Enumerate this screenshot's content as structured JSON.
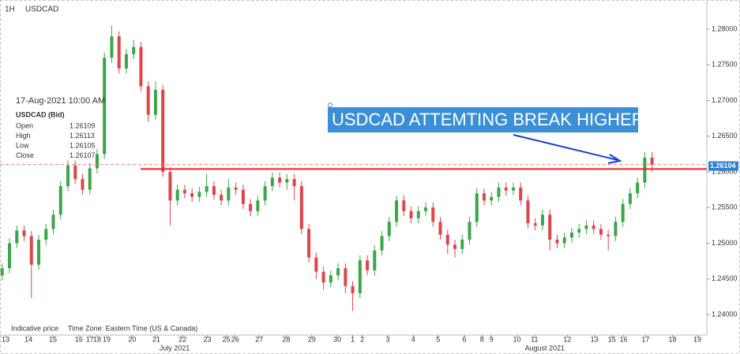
{
  "chart_data": {
    "type": "candlestick",
    "interval": "1H",
    "symbol": "USDCAD",
    "up_color": "#3aa64a",
    "down_color": "#e0444a",
    "ylim": [
      1.23713,
      1.28409
    ],
    "xlim": [
      -0.3,
      96.5
    ],
    "yticks": [
      {
        "value": 1.24,
        "label": "1.24000"
      },
      {
        "value": 1.245,
        "label": "1.24500"
      },
      {
        "value": 1.25,
        "label": "1.25000"
      },
      {
        "value": 1.255,
        "label": "1.25500"
      },
      {
        "value": 1.26,
        "label": "1.26000"
      },
      {
        "value": 1.265,
        "label": "1.26500"
      },
      {
        "value": 1.27,
        "label": "1.27000"
      },
      {
        "value": 1.275,
        "label": "1.27500"
      },
      {
        "value": 1.28,
        "label": "1.28000"
      }
    ],
    "xticks": [
      {
        "value": 0.46,
        "label": "13"
      },
      {
        "value": 3.6,
        "label": "14"
      },
      {
        "value": 6.95,
        "label": "15"
      },
      {
        "value": 10.5,
        "label": "16"
      },
      {
        "value": 12.0,
        "label": "17"
      },
      {
        "value": 13.0,
        "label": "18"
      },
      {
        "value": 14.3,
        "label": "19"
      },
      {
        "value": 17.8,
        "label": "20"
      },
      {
        "value": 21.1,
        "label": "21"
      },
      {
        "value": 24.7,
        "label": "22"
      },
      {
        "value": 28.1,
        "label": "23"
      },
      {
        "value": 30.7,
        "label": "25"
      },
      {
        "value": 31.9,
        "label": "26"
      },
      {
        "value": 35.2,
        "label": "27"
      },
      {
        "value": 38.9,
        "label": "28"
      },
      {
        "value": 42.4,
        "label": "29"
      },
      {
        "value": 45.9,
        "label": "30"
      },
      {
        "value": 48.0,
        "label": "1"
      },
      {
        "value": 49.3,
        "label": "2"
      },
      {
        "value": 52.8,
        "label": "3"
      },
      {
        "value": 56.3,
        "label": "4"
      },
      {
        "value": 59.7,
        "label": "5"
      },
      {
        "value": 63.3,
        "label": "6"
      },
      {
        "value": 65.7,
        "label": "8"
      },
      {
        "value": 67.0,
        "label": "9"
      },
      {
        "value": 70.5,
        "label": "10"
      },
      {
        "value": 72.9,
        "label": "11"
      },
      {
        "value": 77.4,
        "label": "12"
      },
      {
        "value": 81.1,
        "label": "13"
      },
      {
        "value": 83.5,
        "label": "15"
      },
      {
        "value": 85.1,
        "label": "16"
      },
      {
        "value": 88.1,
        "label": "17"
      },
      {
        "value": 91.8,
        "label": "18"
      },
      {
        "value": 95.2,
        "label": "19"
      }
    ],
    "month_labels": [
      {
        "value": 23.6,
        "label": "July 2021"
      },
      {
        "value": 74.3,
        "label": "August 2021"
      }
    ],
    "open": [
      1.2455,
      1.2465,
      1.25,
      1.2518,
      1.251,
      1.247,
      1.2505,
      1.252,
      1.254,
      1.258,
      1.2609,
      1.259,
      1.2575,
      1.2605,
      1.2625,
      1.276,
      1.279,
      1.2745,
      1.2765,
      1.2775,
      1.272,
      1.268,
      1.2715,
      1.26,
      1.256,
      1.2575,
      1.257,
      1.2565,
      1.2572,
      1.258,
      1.2568,
      1.256,
      1.2578,
      1.2575,
      1.2555,
      1.2545,
      1.256,
      1.258,
      1.2592,
      1.2585,
      1.259,
      1.258,
      1.252,
      1.248,
      1.246,
      1.2445,
      1.2455,
      1.2465,
      1.244,
      1.243,
      1.2476,
      1.2462,
      1.249,
      1.251,
      1.253,
      1.256,
      1.2545,
      1.2535,
      1.2545,
      1.255,
      1.253,
      1.2512,
      1.2498,
      1.2492,
      1.2505,
      1.253,
      1.257,
      1.256,
      1.2565,
      1.2578,
      1.2574,
      1.2578,
      1.256,
      1.2528,
      1.2525,
      1.254,
      1.2505,
      1.25,
      1.2508,
      1.2515,
      1.252,
      1.2525,
      1.252,
      1.2512,
      1.251,
      1.253,
      1.2555,
      1.257,
      1.2585,
      1.262
    ],
    "high": [
      1.2472,
      1.2507,
      1.2525,
      1.2525,
      1.2517,
      1.2512,
      1.2527,
      1.2547,
      1.2587,
      1.2616,
      1.2616,
      1.2597,
      1.2612,
      1.2632,
      1.2767,
      1.2805,
      1.2797,
      1.2772,
      1.2785,
      1.2782,
      1.2727,
      1.2727,
      1.2722,
      1.2607,
      1.2582,
      1.2582,
      1.2577,
      1.2579,
      1.2597,
      1.2587,
      1.2575,
      1.259,
      1.2585,
      1.2582,
      1.2562,
      1.2567,
      1.2587,
      1.2599,
      1.2599,
      1.2597,
      1.2597,
      1.2587,
      1.2527,
      1.2487,
      1.2467,
      1.2462,
      1.2472,
      1.2472,
      1.2447,
      1.2483,
      1.2483,
      1.2497,
      1.2517,
      1.2537,
      1.2567,
      1.2567,
      1.2552,
      1.2552,
      1.2557,
      1.2557,
      1.2537,
      1.2519,
      1.2505,
      1.2512,
      1.2537,
      1.2577,
      1.2577,
      1.2572,
      1.2585,
      1.2585,
      1.2585,
      1.2585,
      1.2567,
      1.2535,
      1.2547,
      1.2547,
      1.2512,
      1.2515,
      1.2522,
      1.2527,
      1.2532,
      1.2532,
      1.2527,
      1.2519,
      1.2537,
      1.2562,
      1.2577,
      1.2592,
      1.2628,
      1.2628
    ],
    "low": [
      1.2448,
      1.2458,
      1.2493,
      1.2503,
      1.2423,
      1.2463,
      1.2498,
      1.2513,
      1.2533,
      1.2573,
      1.2583,
      1.2568,
      1.2568,
      1.2598,
      1.2618,
      1.2753,
      1.2738,
      1.2738,
      1.2758,
      1.2713,
      1.267,
      1.2673,
      1.2593,
      1.2525,
      1.2553,
      1.2563,
      1.2558,
      1.2558,
      1.2565,
      1.2561,
      1.2553,
      1.2553,
      1.2568,
      1.2548,
      1.2538,
      1.2538,
      1.2553,
      1.2573,
      1.2578,
      1.2575,
      1.256,
      1.2513,
      1.2473,
      1.245,
      1.2435,
      1.2438,
      1.2448,
      1.243,
      1.2405,
      1.2423,
      1.2455,
      1.2455,
      1.2483,
      1.2503,
      1.2523,
      1.2538,
      1.2528,
      1.2528,
      1.2538,
      1.2523,
      1.2505,
      1.2485,
      1.248,
      1.2485,
      1.2498,
      1.2523,
      1.2553,
      1.2553,
      1.2558,
      1.2567,
      1.2567,
      1.2553,
      1.2521,
      1.2518,
      1.2518,
      1.249,
      1.2493,
      1.2493,
      1.2501,
      1.2508,
      1.2513,
      1.2513,
      1.2505,
      1.249,
      1.2503,
      1.2523,
      1.2548,
      1.2563,
      1.2578,
      1.26
    ],
    "close": [
      1.2465,
      1.25,
      1.2518,
      1.251,
      1.247,
      1.2505,
      1.252,
      1.254,
      1.258,
      1.2609,
      1.259,
      1.2575,
      1.2605,
      1.2625,
      1.276,
      1.279,
      1.2745,
      1.2765,
      1.2775,
      1.272,
      1.268,
      1.2715,
      1.26,
      1.256,
      1.2575,
      1.257,
      1.2565,
      1.2572,
      1.258,
      1.2568,
      1.256,
      1.2578,
      1.2575,
      1.2555,
      1.2545,
      1.256,
      1.258,
      1.2592,
      1.2585,
      1.259,
      1.258,
      1.252,
      1.248,
      1.246,
      1.2445,
      1.2455,
      1.2465,
      1.244,
      1.243,
      1.2476,
      1.2462,
      1.249,
      1.251,
      1.253,
      1.256,
      1.2545,
      1.2535,
      1.2545,
      1.255,
      1.253,
      1.2512,
      1.2498,
      1.2492,
      1.2505,
      1.253,
      1.257,
      1.256,
      1.2565,
      1.2578,
      1.2574,
      1.2578,
      1.256,
      1.2528,
      1.2525,
      1.254,
      1.2505,
      1.25,
      1.2508,
      1.2515,
      1.252,
      1.2525,
      1.252,
      1.2512,
      1.251,
      1.253,
      1.2555,
      1.257,
      1.2585,
      1.262,
      1.261
    ],
    "support_level": 1.2604,
    "current_price": {
      "value": 1.26104,
      "label": "1.26104"
    },
    "annotation": "USDCAD ATTEMTING BREAK HIGHER",
    "info": {
      "datetime": "17-Aug-2021 10:00 AM",
      "heading": "USDCAD (Bid)",
      "rows": [
        {
          "label": "Open",
          "value": 1.26109
        },
        {
          "label": "High",
          "value": 1.26113
        },
        {
          "label": "Low",
          "value": 1.26105
        },
        {
          "label": "Close",
          "value": 1.26107
        }
      ]
    },
    "footer": [
      "Indicative price",
      "Time Zone: Eastern Time (US & Canada)"
    ]
  }
}
